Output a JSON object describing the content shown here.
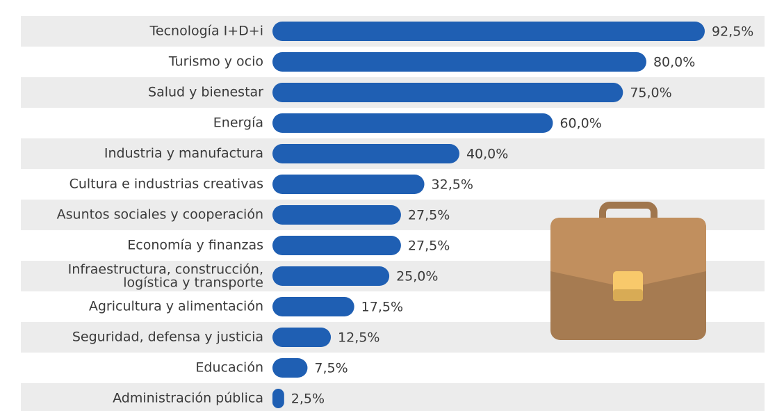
{
  "chart_data": {
    "type": "bar",
    "orientation": "horizontal",
    "categories": [
      "Tecnología I+D+i",
      "Turismo y ocio",
      "Salud y bienestar",
      "Energía",
      "Industria y manufactura",
      "Cultura e industrias creativas",
      "Asuntos sociales y cooperación",
      "Economía y finanzas",
      "Infraestructura, construcción,\nlogística y transporte",
      "Agricultura y alimentación",
      "Seguridad, defensa y justicia",
      "Educación",
      "Administración pública"
    ],
    "values": [
      92.5,
      80.0,
      75.0,
      60.0,
      40.0,
      32.5,
      27.5,
      27.5,
      25.0,
      17.5,
      12.5,
      7.5,
      2.5
    ],
    "value_labels": [
      "92,5%",
      "80,0%",
      "75,0%",
      "60,0%",
      "40,0%",
      "32,5%",
      "27,5%",
      "27,5%",
      "25,0%",
      "17,5%",
      "12,5%",
      "7,5%",
      "2,5%"
    ],
    "color": "#1f5fb3"
  }
}
